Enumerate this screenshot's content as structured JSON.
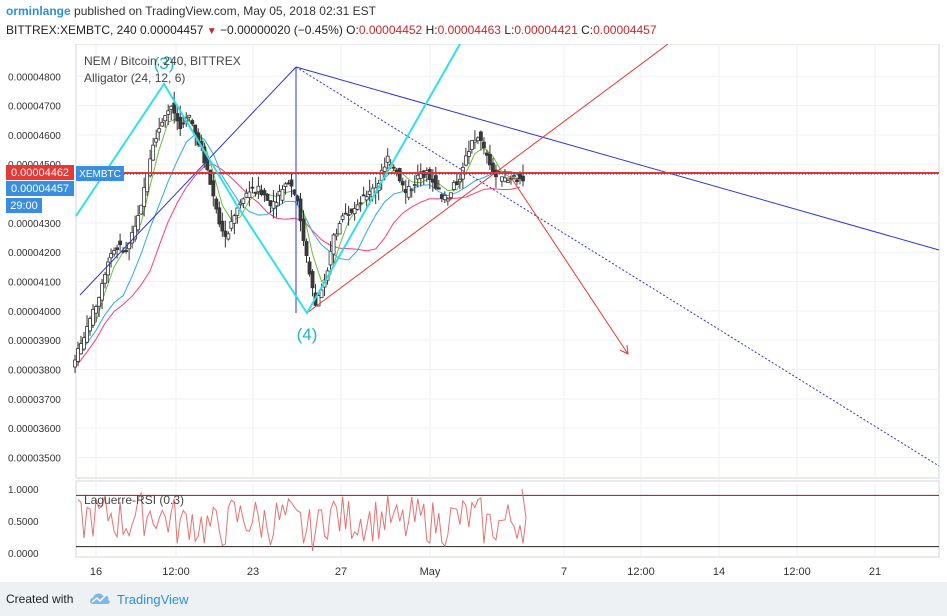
{
  "header": {
    "user": "orminlange",
    "published": "published on TradingView.com, May 05, 2018 02:31 EST",
    "symbol": "BITTREX:XEMBTC, 240",
    "last": "0.00004457",
    "change": "−0.00000020 (−0.45%)",
    "o_label": "O:",
    "o": "0.00004452",
    "h_label": "H:",
    "h": "0.00004463",
    "l_label": "L:",
    "l": "0.00004421",
    "c_label": "C:",
    "c": "0.00004457"
  },
  "legend": {
    "title": "NEM / Bitcoin, 240, BITTREX",
    "indicator": "Alligator (24, 12, 6)",
    "rsi": "Laguerre-RSI (0.3)"
  },
  "labels": {
    "wave3": "(3)",
    "wave4": "(4)"
  },
  "price_tags": {
    "current": "0.00004462",
    "symbol": "XEMBTC",
    "last": "0.00004457",
    "countdown": "29:00"
  },
  "colors": {
    "up": "#ffffff",
    "down": "#3a3a3a",
    "wave": "#2fe0e8",
    "trend_blue": "#2e35d6",
    "trend_red": "#e53935",
    "jaw": "#ff3c7d",
    "teeth": "#2fa8e8",
    "lips": "#6dbf3b",
    "price_line": "#e53935"
  },
  "chart_data": {
    "type": "candlestick",
    "title": "NEM / Bitcoin, 240, BITTREX",
    "ylim": [
      3.43e-05,
      4.91e-05
    ],
    "y_ticks": [
      "0.00004800",
      "0.00004700",
      "0.00004600",
      "0.00004500",
      "0.00004300",
      "0.00004200",
      "0.00004100",
      "0.00004000",
      "0.00003900",
      "0.00003800",
      "0.00003700",
      "0.00003600",
      "0.00003500"
    ],
    "x_ticks": [
      "16",
      "12:00",
      "23",
      "27",
      "May",
      "7",
      "12:00",
      "14",
      "12:00",
      "21"
    ],
    "ohlc_close_path": [
      3.88e-05,
      3.96e-05,
      4.05e-05,
      4.18e-05,
      4.22e-05,
      4.2e-05,
      4.28e-05,
      4.42e-05,
      4.58e-05,
      4.65e-05,
      4.7e-05,
      4.62e-05,
      4.66e-05,
      4.58e-05,
      4.48e-05,
      4.35e-05,
      4.25e-05,
      4.33e-05,
      4.38e-05,
      4.42e-05,
      4.41e-05,
      4.36e-05,
      4.4e-05,
      4.45e-05,
      4.38e-05,
      4.18e-05,
      4.02e-05,
      4.1e-05,
      4.25e-05,
      4.32e-05,
      4.35e-05,
      4.38e-05,
      4.4e-05,
      4.44e-05,
      4.52e-05,
      4.48e-05,
      4.4e-05,
      4.44e-05,
      4.47e-05,
      4.45e-05,
      4.38e-05,
      4.4e-05,
      4.46e-05,
      4.55e-05,
      4.6e-05,
      4.52e-05,
      4.46e-05,
      4.44e-05,
      4.46e-05,
      4.45e-05
    ],
    "rsi": {
      "name": "Laguerre-RSI (0.3)",
      "ylim": [
        0,
        1
      ],
      "y_ticks": [
        "1.0000",
        "0.5000",
        "0.0000"
      ],
      "levels": [
        0.9,
        0.1
      ]
    },
    "annotations": [
      "(3)",
      "(4)"
    ]
  }
}
